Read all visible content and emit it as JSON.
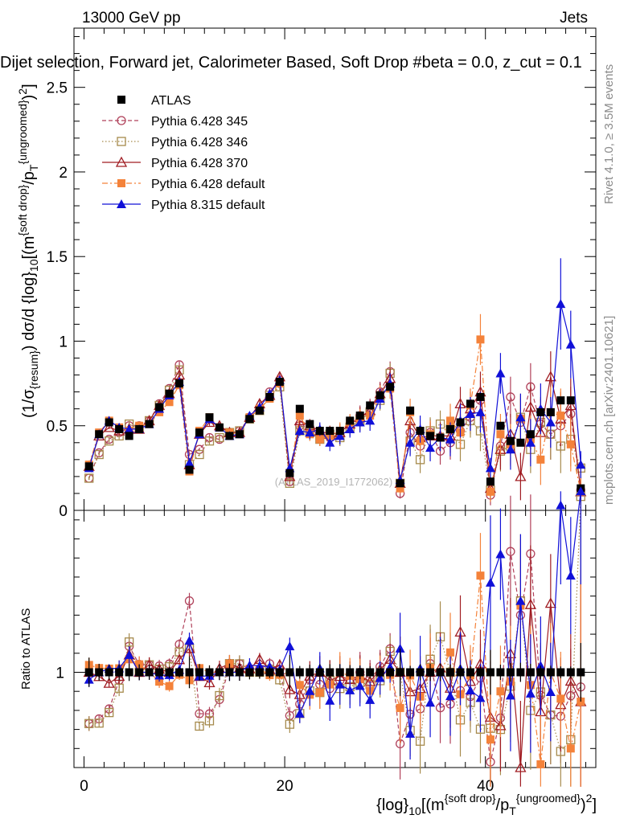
{
  "header": {
    "energy_label": "13000 GeV pp",
    "category_label": "Jets"
  },
  "main_title": "Dijet selection, Forward jet, Calorimeter Based, Soft Drop #beta = 0.0, z_cut = 0.1",
  "side_labels": {
    "rivet": "Rivet 4.1.0, ≥ 3.5M events",
    "mcplots": "mcplots.cern.ch [arXiv:2401.10621]"
  },
  "watermark": "(ATLAS_2019_I1772062)",
  "colors": {
    "atlas": "#000000",
    "p345": "#b0415a",
    "p346": "#a68a4c",
    "p370": "#a01c22",
    "p6def": "#f4823a",
    "p8def": "#1010d8"
  },
  "chart_data": [
    {
      "type": "line",
      "panel": "main",
      "title": "Dijet selection, Forward jet, Calorimeter Based, Soft Drop #beta = 0.0, z_cut = 0.1",
      "ylabel": "(1/σ_{resum}) dσ/d {log}_{10}[(m^{soft drop}/p_T^{ungroomed})^2]",
      "xlabel": "{log}_{10}[(m^{soft drop}/p_T^{ungroomed})^2]",
      "xlim": [
        -1,
        51
      ],
      "ylim": [
        0,
        2.85
      ],
      "yticks": [
        0,
        0.5,
        1,
        1.5,
        2,
        2.5
      ],
      "ytick_labels": [
        "0",
        "0.5",
        "1",
        "1.5",
        "2",
        "2.5"
      ],
      "legend_position": "top-left",
      "x": [
        0.5,
        1.5,
        2.5,
        3.5,
        4.5,
        5.5,
        6.5,
        7.5,
        8.5,
        9.5,
        10.5,
        11.5,
        12.5,
        13.5,
        14.5,
        15.5,
        16.5,
        17.5,
        18.5,
        19.5,
        20.5,
        21.5,
        22.5,
        23.5,
        24.5,
        25.5,
        26.5,
        27.5,
        28.5,
        29.5,
        30.5,
        31.5,
        32.5,
        33.5,
        34.5,
        35.5,
        36.5,
        37.5,
        38.5,
        39.5,
        40.5,
        41.5,
        42.5,
        43.5,
        44.5,
        45.5,
        46.5,
        47.5,
        48.5,
        49.5
      ],
      "series": [
        {
          "name": "ATLAS",
          "key": "atlas",
          "marker": "square-filled",
          "line": "none",
          "values": [
            0.26,
            0.45,
            0.52,
            0.48,
            0.44,
            0.48,
            0.51,
            0.61,
            0.69,
            0.75,
            0.24,
            0.46,
            0.55,
            0.49,
            0.44,
            0.45,
            0.54,
            0.59,
            0.67,
            0.76,
            0.22,
            0.6,
            0.51,
            0.47,
            0.47,
            0.47,
            0.53,
            0.56,
            0.62,
            0.68,
            0.73,
            0.16,
            0.59,
            0.47,
            0.44,
            0.43,
            0.48,
            0.52,
            0.63,
            0.67,
            0.17,
            0.5,
            0.41,
            0.4,
            0.45,
            0.58,
            0.58,
            0.65,
            0.65,
            0.13
          ],
          "errors": [
            0.02,
            0.02,
            0.02,
            0.02,
            0.02,
            0.02,
            0.02,
            0.02,
            0.02,
            0.02,
            0.02,
            0.02,
            0.02,
            0.02,
            0.02,
            0.02,
            0.02,
            0.02,
            0.02,
            0.02,
            0.02,
            0.02,
            0.02,
            0.02,
            0.02,
            0.02,
            0.02,
            0.02,
            0.02,
            0.02,
            0.02,
            0.02,
            0.02,
            0.02,
            0.02,
            0.02,
            0.02,
            0.02,
            0.02,
            0.02,
            0.02,
            0.02,
            0.02,
            0.02,
            0.02,
            0.02,
            0.02,
            0.02,
            0.02,
            0.02
          ]
        },
        {
          "name": "Pythia 6.428 345",
          "key": "p345",
          "marker": "circle-open",
          "line": "dashed",
          "values": [
            0.19,
            0.34,
            0.42,
            0.46,
            0.5,
            0.5,
            0.53,
            0.63,
            0.72,
            0.86,
            0.33,
            0.36,
            0.43,
            0.42,
            0.45,
            0.47,
            0.55,
            0.6,
            0.7,
            0.77,
            0.17,
            0.5,
            0.49,
            0.44,
            0.43,
            0.45,
            0.51,
            0.56,
            0.6,
            0.7,
            0.82,
            0.1,
            0.46,
            0.38,
            0.46,
            0.35,
            0.4,
            0.47,
            0.55,
            0.65,
            0.09,
            0.38,
            0.67,
            0.52,
            0.73,
            0.51,
            0.45,
            0.5,
            0.57,
            0.12
          ],
          "errors": [
            0.01,
            0.01,
            0.01,
            0.02,
            0.02,
            0.02,
            0.02,
            0.02,
            0.02,
            0.02,
            0.01,
            0.01,
            0.02,
            0.02,
            0.02,
            0.02,
            0.02,
            0.02,
            0.02,
            0.02,
            0.01,
            0.03,
            0.04,
            0.04,
            0.05,
            0.05,
            0.05,
            0.06,
            0.06,
            0.06,
            0.06,
            0.03,
            0.08,
            0.08,
            0.08,
            0.08,
            0.1,
            0.1,
            0.1,
            0.12,
            0.06,
            0.12,
            0.12,
            0.14,
            0.14,
            0.15,
            0.15,
            0.16,
            0.16,
            0.08
          ]
        },
        {
          "name": "Pythia 6.428 346",
          "key": "p346",
          "marker": "square-open",
          "line": "dotted",
          "values": [
            0.19,
            0.33,
            0.41,
            0.44,
            0.51,
            0.48,
            0.53,
            0.62,
            0.71,
            0.83,
            0.27,
            0.33,
            0.41,
            0.43,
            0.46,
            0.47,
            0.54,
            0.59,
            0.68,
            0.73,
            0.16,
            0.47,
            0.46,
            0.42,
            0.45,
            0.43,
            0.49,
            0.53,
            0.58,
            0.65,
            0.81,
            0.16,
            0.41,
            0.3,
            0.47,
            0.51,
            0.48,
            0.39,
            0.53,
            0.47,
            0.12,
            0.35,
            0.38,
            0.55,
            0.36,
            0.52,
            0.45,
            0.38,
            0.42,
            0.25
          ],
          "errors": [
            0.01,
            0.01,
            0.01,
            0.02,
            0.02,
            0.02,
            0.02,
            0.02,
            0.02,
            0.02,
            0.01,
            0.01,
            0.02,
            0.02,
            0.02,
            0.02,
            0.02,
            0.02,
            0.02,
            0.02,
            0.01,
            0.03,
            0.04,
            0.04,
            0.05,
            0.05,
            0.05,
            0.06,
            0.06,
            0.06,
            0.06,
            0.03,
            0.08,
            0.08,
            0.08,
            0.08,
            0.1,
            0.1,
            0.1,
            0.12,
            0.06,
            0.12,
            0.12,
            0.14,
            0.14,
            0.15,
            0.15,
            0.16,
            0.16,
            0.08
          ]
        },
        {
          "name": "Pythia 6.428 370",
          "key": "p370",
          "marker": "triangle-open",
          "line": "solid",
          "values": [
            0.26,
            0.44,
            0.49,
            0.47,
            0.48,
            0.48,
            0.53,
            0.62,
            0.69,
            0.8,
            0.27,
            0.45,
            0.52,
            0.5,
            0.46,
            0.46,
            0.55,
            0.63,
            0.68,
            0.79,
            0.2,
            0.53,
            0.5,
            0.47,
            0.45,
            0.46,
            0.51,
            0.55,
            0.59,
            0.69,
            0.78,
            0.16,
            0.53,
            0.43,
            0.44,
            0.44,
            0.44,
            0.63,
            0.6,
            0.7,
            0.13,
            0.36,
            0.45,
            0.2,
            0.61,
            0.46,
            0.79,
            0.54,
            0.62,
            0.11
          ],
          "errors": [
            0.01,
            0.01,
            0.01,
            0.02,
            0.02,
            0.02,
            0.02,
            0.02,
            0.02,
            0.02,
            0.01,
            0.01,
            0.02,
            0.02,
            0.02,
            0.02,
            0.02,
            0.02,
            0.02,
            0.02,
            0.01,
            0.03,
            0.04,
            0.04,
            0.05,
            0.05,
            0.05,
            0.06,
            0.06,
            0.06,
            0.06,
            0.03,
            0.08,
            0.08,
            0.08,
            0.08,
            0.1,
            0.1,
            0.1,
            0.12,
            0.06,
            0.12,
            0.12,
            0.14,
            0.14,
            0.15,
            0.15,
            0.16,
            0.16,
            0.08
          ]
        },
        {
          "name": "Pythia 6.428 default",
          "key": "p6def",
          "marker": "square-filled",
          "line": "dashdot",
          "values": [
            0.27,
            0.46,
            0.53,
            0.49,
            0.47,
            0.5,
            0.51,
            0.58,
            0.64,
            0.74,
            0.23,
            0.47,
            0.55,
            0.49,
            0.46,
            0.45,
            0.55,
            0.6,
            0.66,
            0.75,
            0.22,
            0.56,
            0.45,
            0.42,
            0.44,
            0.47,
            0.52,
            0.54,
            0.56,
            0.68,
            0.72,
            0.13,
            0.58,
            0.41,
            0.45,
            0.43,
            0.53,
            0.46,
            0.62,
            1.01,
            0.11,
            0.45,
            0.39,
            0.54,
            0.42,
            0.3,
            0.58,
            0.56,
            0.39,
            0.11
          ],
          "errors": [
            0.01,
            0.01,
            0.01,
            0.02,
            0.02,
            0.02,
            0.02,
            0.02,
            0.02,
            0.02,
            0.01,
            0.01,
            0.02,
            0.02,
            0.02,
            0.02,
            0.02,
            0.02,
            0.02,
            0.02,
            0.01,
            0.03,
            0.04,
            0.04,
            0.05,
            0.05,
            0.05,
            0.06,
            0.06,
            0.06,
            0.06,
            0.03,
            0.08,
            0.08,
            0.08,
            0.08,
            0.1,
            0.1,
            0.1,
            0.15,
            0.06,
            0.12,
            0.12,
            0.14,
            0.14,
            0.15,
            0.15,
            0.16,
            0.16,
            0.08
          ]
        },
        {
          "name": "Pythia 8.315 default",
          "key": "p8def",
          "marker": "triangle-filled",
          "line": "solid",
          "values": [
            0.25,
            0.45,
            0.53,
            0.49,
            0.48,
            0.48,
            0.51,
            0.6,
            0.68,
            0.76,
            0.28,
            0.45,
            0.54,
            0.49,
            0.44,
            0.45,
            0.56,
            0.61,
            0.69,
            0.77,
            0.25,
            0.47,
            0.46,
            0.48,
            0.4,
            0.44,
            0.48,
            0.52,
            0.53,
            0.66,
            0.75,
            0.18,
            0.4,
            0.48,
            0.37,
            0.43,
            0.42,
            0.53,
            0.57,
            0.58,
            0.25,
            0.81,
            0.36,
            0.55,
            0.4,
            0.6,
            0.52,
            1.22,
            0.98,
            0.27
          ],
          "errors": [
            0.01,
            0.01,
            0.01,
            0.02,
            0.02,
            0.02,
            0.02,
            0.02,
            0.02,
            0.02,
            0.01,
            0.01,
            0.02,
            0.02,
            0.02,
            0.02,
            0.02,
            0.02,
            0.02,
            0.02,
            0.01,
            0.03,
            0.04,
            0.04,
            0.05,
            0.05,
            0.05,
            0.06,
            0.06,
            0.06,
            0.06,
            0.03,
            0.08,
            0.08,
            0.08,
            0.08,
            0.1,
            0.1,
            0.1,
            0.12,
            0.06,
            0.12,
            0.12,
            0.14,
            0.14,
            0.15,
            0.15,
            0.27,
            0.2,
            0.08
          ]
        }
      ]
    },
    {
      "type": "line",
      "panel": "ratio",
      "ylabel": "Ratio to ATLAS",
      "xlabel": "{log}_{10}[(m^{soft drop}/p_T^{ungroomed})^2]",
      "xlim": [
        -1,
        51
      ],
      "ylim": [
        0.5,
        1.85
      ],
      "yticks": [
        1
      ],
      "ytick_labels": [
        "1"
      ],
      "xticks": [
        0,
        20,
        40
      ],
      "xtick_labels": [
        "0",
        "20",
        "40"
      ],
      "reference": "ATLAS"
    }
  ]
}
